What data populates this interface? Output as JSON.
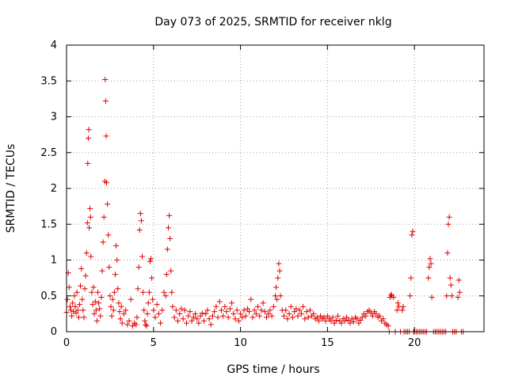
{
  "chart_data": {
    "type": "scatter",
    "title": "Day 073 of 2025, SRMTID for receiver nklg",
    "xlabel": "GPS time / hours",
    "ylabel": "SRMTID / TECUs",
    "xlim": [
      0,
      24
    ],
    "ylim": [
      0,
      4
    ],
    "xticks": [
      0,
      5,
      10,
      15,
      20
    ],
    "xtick_labels": [
      "0",
      "5",
      "10",
      "15",
      "20"
    ],
    "yticks": [
      0,
      0.5,
      1,
      1.5,
      2,
      2.5,
      3,
      3.5,
      4
    ],
    "ytick_labels": [
      "0",
      "0.5",
      "1",
      "1.5",
      "2",
      "2.5",
      "3",
      "3.5",
      "4"
    ],
    "grid": true,
    "marker": "+",
    "color": "#e00000",
    "series": [
      {
        "name": "SRMTID",
        "points": [
          [
            0.0,
            0.27
          ],
          [
            0.05,
            0.45
          ],
          [
            0.1,
            0.82
          ],
          [
            0.15,
            0.62
          ],
          [
            0.2,
            0.35
          ],
          [
            0.25,
            0.3
          ],
          [
            0.3,
            0.22
          ],
          [
            0.35,
            0.4
          ],
          [
            0.4,
            0.28
          ],
          [
            0.45,
            0.5
          ],
          [
            0.5,
            0.35
          ],
          [
            0.55,
            0.26
          ],
          [
            0.6,
            0.55
          ],
          [
            0.65,
            0.3
          ],
          [
            0.7,
            0.2
          ],
          [
            0.75,
            0.38
          ],
          [
            0.8,
            0.64
          ],
          [
            0.85,
            0.88
          ],
          [
            0.9,
            0.45
          ],
          [
            0.95,
            0.3
          ],
          [
            1.0,
            0.2
          ],
          [
            1.05,
            0.6
          ],
          [
            1.1,
            0.78
          ],
          [
            1.15,
            1.1
          ],
          [
            1.2,
            1.52
          ],
          [
            1.22,
            2.35
          ],
          [
            1.25,
            2.7
          ],
          [
            1.28,
            2.82
          ],
          [
            1.3,
            1.45
          ],
          [
            1.35,
            1.72
          ],
          [
            1.38,
            1.6
          ],
          [
            1.4,
            1.05
          ],
          [
            1.45,
            0.55
          ],
          [
            1.5,
            0.38
          ],
          [
            1.55,
            0.62
          ],
          [
            1.6,
            0.25
          ],
          [
            1.65,
            0.42
          ],
          [
            1.7,
            0.3
          ],
          [
            1.75,
            0.15
          ],
          [
            1.8,
            0.55
          ],
          [
            1.85,
            0.4
          ],
          [
            1.9,
            0.32
          ],
          [
            1.95,
            0.22
          ],
          [
            2.0,
            0.48
          ],
          [
            2.05,
            0.85
          ],
          [
            2.1,
            1.25
          ],
          [
            2.15,
            1.6
          ],
          [
            2.2,
            2.1
          ],
          [
            2.22,
            3.52
          ],
          [
            2.25,
            3.22
          ],
          [
            2.28,
            2.73
          ],
          [
            2.3,
            2.08
          ],
          [
            2.35,
            1.78
          ],
          [
            2.4,
            1.35
          ],
          [
            2.45,
            0.9
          ],
          [
            2.5,
            0.5
          ],
          [
            2.55,
            0.35
          ],
          [
            2.6,
            0.22
          ],
          [
            2.65,
            0.45
          ],
          [
            2.7,
            0.3
          ],
          [
            2.75,
            0.55
          ],
          [
            2.8,
            0.8
          ],
          [
            2.85,
            1.2
          ],
          [
            2.9,
            1.0
          ],
          [
            2.95,
            0.6
          ],
          [
            3.0,
            0.4
          ],
          [
            3.05,
            0.28
          ],
          [
            3.1,
            0.18
          ],
          [
            3.15,
            0.35
          ],
          [
            3.2,
            0.12
          ],
          [
            3.3,
            0.25
          ],
          [
            3.4,
            0.3
          ],
          [
            3.5,
            0.1
          ],
          [
            3.6,
            0.15
          ],
          [
            3.7,
            0.45
          ],
          [
            3.8,
            0.08
          ],
          [
            3.9,
            0.12
          ],
          [
            4.0,
            0.1
          ],
          [
            4.05,
            0.2
          ],
          [
            4.1,
            0.6
          ],
          [
            4.15,
            0.9
          ],
          [
            4.2,
            1.42
          ],
          [
            4.25,
            1.65
          ],
          [
            4.3,
            1.55
          ],
          [
            4.35,
            1.05
          ],
          [
            4.4,
            0.55
          ],
          [
            4.45,
            0.3
          ],
          [
            4.5,
            0.15
          ],
          [
            4.55,
            0.1
          ],
          [
            4.6,
            0.08
          ],
          [
            4.65,
            0.25
          ],
          [
            4.7,
            0.4
          ],
          [
            4.75,
            0.55
          ],
          [
            4.8,
            0.98
          ],
          [
            4.85,
            1.02
          ],
          [
            4.9,
            0.75
          ],
          [
            4.95,
            0.45
          ],
          [
            5.0,
            0.3
          ],
          [
            5.1,
            0.2
          ],
          [
            5.2,
            0.38
          ],
          [
            5.3,
            0.25
          ],
          [
            5.4,
            0.12
          ],
          [
            5.5,
            0.3
          ],
          [
            5.6,
            0.55
          ],
          [
            5.7,
            0.5
          ],
          [
            5.75,
            0.8
          ],
          [
            5.8,
            1.15
          ],
          [
            5.85,
            1.45
          ],
          [
            5.9,
            1.62
          ],
          [
            5.95,
            1.3
          ],
          [
            6.0,
            0.85
          ],
          [
            6.05,
            0.55
          ],
          [
            6.1,
            0.35
          ],
          [
            6.2,
            0.2
          ],
          [
            6.3,
            0.3
          ],
          [
            6.4,
            0.15
          ],
          [
            6.5,
            0.25
          ],
          [
            6.6,
            0.32
          ],
          [
            6.7,
            0.18
          ],
          [
            6.8,
            0.3
          ],
          [
            6.9,
            0.12
          ],
          [
            7.0,
            0.22
          ],
          [
            7.1,
            0.28
          ],
          [
            7.2,
            0.15
          ],
          [
            7.3,
            0.2
          ],
          [
            7.4,
            0.25
          ],
          [
            7.5,
            0.18
          ],
          [
            7.6,
            0.12
          ],
          [
            7.7,
            0.22
          ],
          [
            7.8,
            0.26
          ],
          [
            7.9,
            0.15
          ],
          [
            8.0,
            0.25
          ],
          [
            8.1,
            0.3
          ],
          [
            8.2,
            0.18
          ],
          [
            8.3,
            0.1
          ],
          [
            8.4,
            0.22
          ],
          [
            8.5,
            0.28
          ],
          [
            8.6,
            0.35
          ],
          [
            8.7,
            0.2
          ],
          [
            8.8,
            0.42
          ],
          [
            8.9,
            0.3
          ],
          [
            9.0,
            0.22
          ],
          [
            9.1,
            0.35
          ],
          [
            9.2,
            0.28
          ],
          [
            9.3,
            0.2
          ],
          [
            9.4,
            0.32
          ],
          [
            9.5,
            0.4
          ],
          [
            9.6,
            0.25
          ],
          [
            9.7,
            0.18
          ],
          [
            9.8,
            0.3
          ],
          [
            9.9,
            0.15
          ],
          [
            10.0,
            0.25
          ],
          [
            10.1,
            0.2
          ],
          [
            10.2,
            0.3
          ],
          [
            10.3,
            0.22
          ],
          [
            10.4,
            0.32
          ],
          [
            10.5,
            0.28
          ],
          [
            10.6,
            0.45
          ],
          [
            10.7,
            0.2
          ],
          [
            10.8,
            0.3
          ],
          [
            10.9,
            0.25
          ],
          [
            11.0,
            0.35
          ],
          [
            11.1,
            0.22
          ],
          [
            11.2,
            0.3
          ],
          [
            11.3,
            0.4
          ],
          [
            11.4,
            0.28
          ],
          [
            11.5,
            0.2
          ],
          [
            11.6,
            0.25
          ],
          [
            11.7,
            0.3
          ],
          [
            11.8,
            0.22
          ],
          [
            11.9,
            0.35
          ],
          [
            12.0,
            0.5
          ],
          [
            12.05,
            0.62
          ],
          [
            12.1,
            0.45
          ],
          [
            12.15,
            0.75
          ],
          [
            12.2,
            0.95
          ],
          [
            12.25,
            0.85
          ],
          [
            12.3,
            0.5
          ],
          [
            12.4,
            0.3
          ],
          [
            12.5,
            0.22
          ],
          [
            12.6,
            0.3
          ],
          [
            12.7,
            0.18
          ],
          [
            12.8,
            0.25
          ],
          [
            12.9,
            0.35
          ],
          [
            13.0,
            0.2
          ],
          [
            13.1,
            0.28
          ],
          [
            13.2,
            0.32
          ],
          [
            13.3,
            0.22
          ],
          [
            13.4,
            0.3
          ],
          [
            13.5,
            0.25
          ],
          [
            13.6,
            0.35
          ],
          [
            13.7,
            0.18
          ],
          [
            13.8,
            0.28
          ],
          [
            13.9,
            0.2
          ],
          [
            14.0,
            0.3
          ],
          [
            14.1,
            0.22
          ],
          [
            14.2,
            0.25
          ],
          [
            14.3,
            0.18
          ],
          [
            14.4,
            0.2
          ],
          [
            14.5,
            0.15
          ],
          [
            14.6,
            0.22
          ],
          [
            14.7,
            0.18
          ],
          [
            14.8,
            0.2
          ],
          [
            14.9,
            0.15
          ],
          [
            15.0,
            0.22
          ],
          [
            15.1,
            0.18
          ],
          [
            15.2,
            0.15
          ],
          [
            15.3,
            0.2
          ],
          [
            15.4,
            0.12
          ],
          [
            15.5,
            0.16
          ],
          [
            15.6,
            0.22
          ],
          [
            15.7,
            0.15
          ],
          [
            15.8,
            0.12
          ],
          [
            15.9,
            0.18
          ],
          [
            16.0,
            0.15
          ],
          [
            16.1,
            0.2
          ],
          [
            16.2,
            0.16
          ],
          [
            16.3,
            0.12
          ],
          [
            16.4,
            0.18
          ],
          [
            16.5,
            0.14
          ],
          [
            16.6,
            0.2
          ],
          [
            16.7,
            0.18
          ],
          [
            16.8,
            0.12
          ],
          [
            16.9,
            0.16
          ],
          [
            17.0,
            0.2
          ],
          [
            17.1,
            0.25
          ],
          [
            17.2,
            0.22
          ],
          [
            17.3,
            0.28
          ],
          [
            17.4,
            0.3
          ],
          [
            17.5,
            0.26
          ],
          [
            17.6,
            0.22
          ],
          [
            17.7,
            0.28
          ],
          [
            17.8,
            0.25
          ],
          [
            17.9,
            0.2
          ],
          [
            18.0,
            0.22
          ],
          [
            18.1,
            0.15
          ],
          [
            18.2,
            0.18
          ],
          [
            18.3,
            0.12
          ],
          [
            18.4,
            0.1
          ],
          [
            18.5,
            0.08
          ],
          [
            18.55,
            0.0
          ],
          [
            18.6,
            0.48
          ],
          [
            18.65,
            0.52
          ],
          [
            18.7,
            0.5
          ],
          [
            18.8,
            0.48
          ],
          [
            18.9,
            0.0
          ],
          [
            19.0,
            0.3
          ],
          [
            19.05,
            0.4
          ],
          [
            19.1,
            0.35
          ],
          [
            19.2,
            0.0
          ],
          [
            19.3,
            0.3
          ],
          [
            19.35,
            0.35
          ],
          [
            19.4,
            0.0
          ],
          [
            19.5,
            0.0
          ],
          [
            19.6,
            0.0
          ],
          [
            19.7,
            0.0
          ],
          [
            19.75,
            0.5
          ],
          [
            19.8,
            0.75
          ],
          [
            19.85,
            1.35
          ],
          [
            19.9,
            1.4
          ],
          [
            19.95,
            0.0
          ],
          [
            20.0,
            0.0
          ],
          [
            20.1,
            0.0
          ],
          [
            20.2,
            0.0
          ],
          [
            20.3,
            0.0
          ],
          [
            20.4,
            0.0
          ],
          [
            20.5,
            0.0
          ],
          [
            20.6,
            0.0
          ],
          [
            20.7,
            0.0
          ],
          [
            20.8,
            0.75
          ],
          [
            20.85,
            0.9
          ],
          [
            20.9,
            1.02
          ],
          [
            20.95,
            0.95
          ],
          [
            21.0,
            0.48
          ],
          [
            21.1,
            0.0
          ],
          [
            21.2,
            0.0
          ],
          [
            21.3,
            0.0
          ],
          [
            21.4,
            0.0
          ],
          [
            21.5,
            0.0
          ],
          [
            21.6,
            0.0
          ],
          [
            21.7,
            0.0
          ],
          [
            21.8,
            0.0
          ],
          [
            21.85,
            0.5
          ],
          [
            21.9,
            1.1
          ],
          [
            21.95,
            1.5
          ],
          [
            22.0,
            1.6
          ],
          [
            22.05,
            0.75
          ],
          [
            22.1,
            0.65
          ],
          [
            22.15,
            0.5
          ],
          [
            22.2,
            0.0
          ],
          [
            22.3,
            0.0
          ],
          [
            22.4,
            0.0
          ],
          [
            22.5,
            0.48
          ],
          [
            22.55,
            0.72
          ],
          [
            22.6,
            0.55
          ],
          [
            22.7,
            0.0
          ],
          [
            22.8,
            0.0
          ]
        ]
      }
    ]
  }
}
